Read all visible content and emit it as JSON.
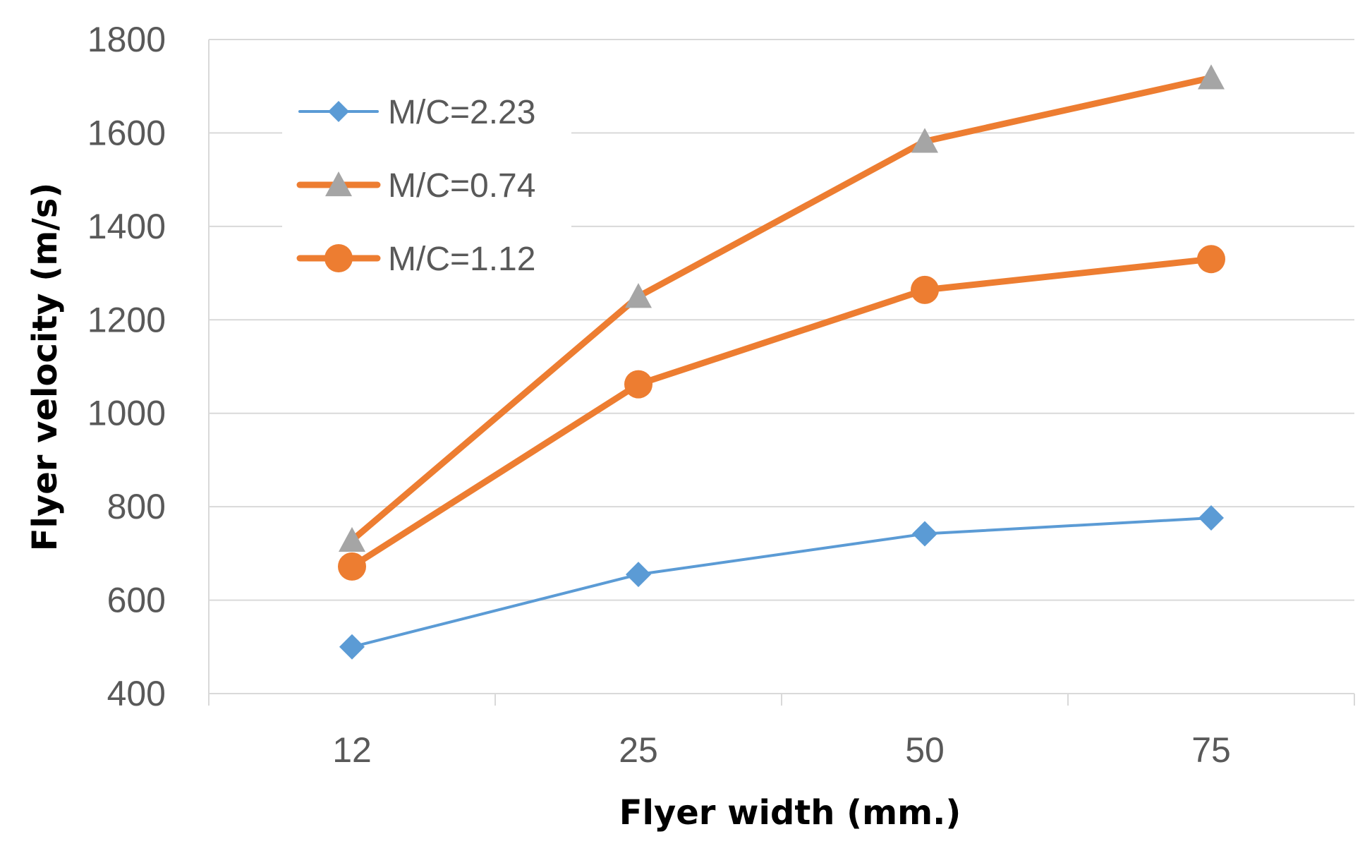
{
  "chart_data": {
    "type": "line",
    "title": "",
    "xlabel": "Flyer width (mm.)",
    "ylabel": "Flyer velocity (m/s)",
    "categories": [
      "12",
      "25",
      "50",
      "75"
    ],
    "ylim": [
      400,
      1800
    ],
    "yticks": [
      400,
      600,
      800,
      1000,
      1200,
      1400,
      1600,
      1800
    ],
    "grid": true,
    "legend_position": "top-left",
    "series": [
      {
        "name": "M/C=2.23",
        "values": [
          500,
          655,
          742,
          776
        ],
        "color": "#5b9bd5",
        "marker": "diamond",
        "line_width": "thin"
      },
      {
        "name": "M/C=0.74",
        "values": [
          728,
          1250,
          1582,
          1718
        ],
        "color": "#ed7d31",
        "marker": "triangle",
        "marker_color": "#a5a5a5",
        "line_width": "thick"
      },
      {
        "name": "M/C=1.12",
        "values": [
          672,
          1062,
          1264,
          1330
        ],
        "color": "#ed7d31",
        "marker": "circle",
        "line_width": "thick"
      }
    ]
  }
}
